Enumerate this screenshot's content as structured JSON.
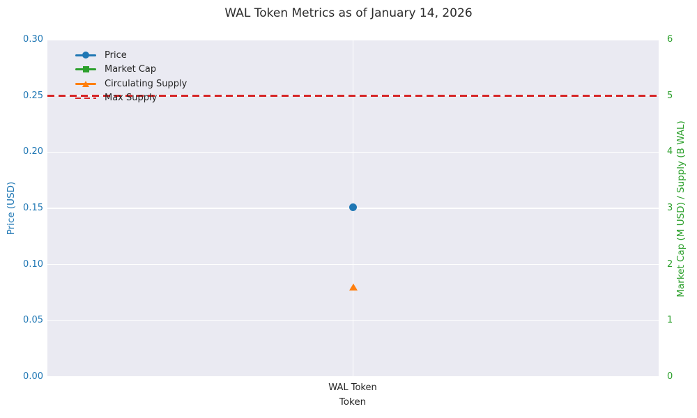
{
  "chart_data": {
    "type": "scatter",
    "title": "WAL Token Metrics as of January 14, 2026",
    "xlabel": "Token",
    "categories": [
      "WAL Token"
    ],
    "left_axis": {
      "label": "Price (USD)",
      "range": [
        0,
        0.3
      ],
      "ticks": [
        0.0,
        0.05,
        0.1,
        0.15,
        0.2,
        0.25,
        0.3
      ],
      "tick_decimals": 2,
      "color": "#1f77b4"
    },
    "right_axis": {
      "label": "Market Cap (M USD) / Supply (B WAL)",
      "range": [
        0,
        6
      ],
      "ticks": [
        0,
        1,
        2,
        3,
        4,
        5,
        6
      ],
      "tick_decimals": 0,
      "color": "#2ca02c"
    },
    "series": [
      {
        "name": "Price",
        "axis": "left",
        "marker": "circle",
        "color": "#1f77b4",
        "values": [
          0.151
        ]
      },
      {
        "name": "Market Cap",
        "axis": "right",
        "marker": "square",
        "color": "#2ca02c",
        "values": [
          null
        ],
        "note": "marker not visible in plot (occluded by Price marker)"
      },
      {
        "name": "Circulating Supply",
        "axis": "right",
        "marker": "triangle",
        "color": "#ff7f0e",
        "values": [
          1.6
        ]
      },
      {
        "name": "Max Supply",
        "axis": "right",
        "marker": "dashed-hline",
        "color": "#d62728",
        "values": [
          5.0
        ]
      }
    ],
    "legend": {
      "position": "upper left",
      "frame": false,
      "entries": [
        "Price",
        "Market Cap",
        "Circulating Supply",
        "Max Supply"
      ]
    },
    "grid": true,
    "plot_background": "#eaeaf2",
    "grid_color": "#ffffff",
    "text_color": "#262626"
  }
}
